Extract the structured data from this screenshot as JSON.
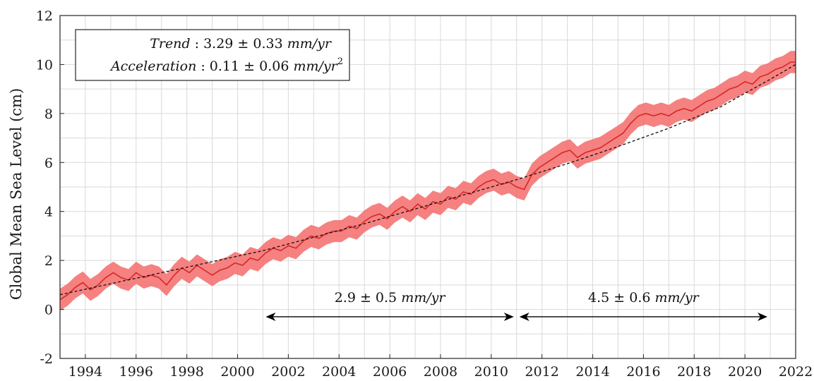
{
  "chart_data": {
    "type": "line",
    "title": "",
    "xlabel": "",
    "ylabel": "Global Mean Sea Level (cm)",
    "xlim": [
      1993,
      2022
    ],
    "ylim": [
      -2,
      12
    ],
    "x_ticks": [
      1994,
      1996,
      1998,
      2000,
      2002,
      2004,
      2006,
      2008,
      2010,
      2012,
      2014,
      2016,
      2018,
      2020,
      2022
    ],
    "y_ticks": [
      -2,
      0,
      2,
      4,
      6,
      8,
      10,
      12
    ],
    "grid": true,
    "colors": {
      "series": "#d62728",
      "band": "#f46b6b",
      "trend": "#111111"
    },
    "legend_box": {
      "placement": "top-left",
      "lines": [
        {
          "label": "Trend",
          "value": "3.29 ± 0.33",
          "unit": "mm/yr"
        },
        {
          "label": "Acceleration",
          "value": "0.11 ± 0.06",
          "unit": "mm/yr",
          "sup": "2"
        }
      ]
    },
    "series": [
      {
        "x": [
          1993.0,
          1993.3,
          1993.6,
          1993.9,
          1994.2,
          1994.5,
          1994.8,
          1995.1,
          1995.4,
          1995.7,
          1996.0,
          1996.3,
          1996.6,
          1996.9,
          1997.2,
          1997.5,
          1997.8,
          1998.1,
          1998.4,
          1998.7,
          1999.0,
          1999.3,
          1999.6,
          1999.9,
          2000.2,
          2000.5,
          2000.8,
          2001.1,
          2001.4,
          2001.7,
          2002.0,
          2002.3,
          2002.6,
          2002.9,
          2003.2,
          2003.5,
          2003.8,
          2004.1,
          2004.4,
          2004.7,
          2005.0,
          2005.3,
          2005.6,
          2005.9,
          2006.2,
          2006.5,
          2006.8,
          2007.1,
          2007.4,
          2007.7,
          2008.0,
          2008.3,
          2008.6,
          2008.9,
          2009.2,
          2009.5,
          2009.8,
          2010.1,
          2010.4,
          2010.7,
          2011.0,
          2011.3,
          2011.6,
          2011.9,
          2012.2,
          2012.5,
          2012.8,
          2013.1,
          2013.4,
          2013.7,
          2014.0,
          2014.3,
          2014.6,
          2014.9,
          2015.2,
          2015.5,
          2015.8,
          2016.1,
          2016.4,
          2016.7,
          2017.0,
          2017.3,
          2017.6,
          2017.9,
          2018.2,
          2018.5,
          2018.8,
          2019.1,
          2019.4,
          2019.7,
          2020.0,
          2020.3,
          2020.6,
          2020.9,
          2021.2,
          2021.5,
          2021.8,
          2022.0
        ],
        "y": [
          0.4,
          0.6,
          0.9,
          1.1,
          0.8,
          1.0,
          1.3,
          1.5,
          1.3,
          1.2,
          1.5,
          1.3,
          1.4,
          1.3,
          1.0,
          1.4,
          1.7,
          1.5,
          1.8,
          1.6,
          1.4,
          1.6,
          1.7,
          1.9,
          1.8,
          2.1,
          2.0,
          2.3,
          2.5,
          2.4,
          2.6,
          2.5,
          2.8,
          3.0,
          2.9,
          3.1,
          3.2,
          3.2,
          3.4,
          3.3,
          3.6,
          3.8,
          3.9,
          3.7,
          4.0,
          4.2,
          4.0,
          4.3,
          4.1,
          4.4,
          4.3,
          4.6,
          4.5,
          4.8,
          4.7,
          5.0,
          5.2,
          5.3,
          5.1,
          5.2,
          5.0,
          4.9,
          5.5,
          5.8,
          6.0,
          6.2,
          6.4,
          6.5,
          6.2,
          6.4,
          6.5,
          6.6,
          6.8,
          7.0,
          7.2,
          7.6,
          7.9,
          8.0,
          7.9,
          8.0,
          7.9,
          8.1,
          8.2,
          8.1,
          8.3,
          8.5,
          8.6,
          8.8,
          9.0,
          9.1,
          9.3,
          9.2,
          9.5,
          9.6,
          9.8,
          9.9,
          10.1,
          10.1
        ],
        "uncertainty": 0.45
      }
    ],
    "trend_line": {
      "type": "quadratic",
      "x": [
        1993,
        1995,
        1997,
        1999,
        2001,
        2003,
        2005,
        2007,
        2009,
        2011,
        2013,
        2015,
        2017,
        2019,
        2021,
        2022
      ],
      "y": [
        0.6,
        1.05,
        1.5,
        1.95,
        2.4,
        2.95,
        3.5,
        4.1,
        4.7,
        5.3,
        5.95,
        6.65,
        7.4,
        8.25,
        9.4,
        10.0
      ]
    },
    "annotations": [
      {
        "x_start": 2001,
        "x_end": 2011,
        "y": -0.3,
        "label_value": "2.9 ± 0.5",
        "label_unit": "mm/yr"
      },
      {
        "x_start": 2011,
        "x_end": 2021,
        "y": -0.3,
        "label_value": "4.5 ± 0.6",
        "label_unit": "mm/yr"
      }
    ]
  }
}
